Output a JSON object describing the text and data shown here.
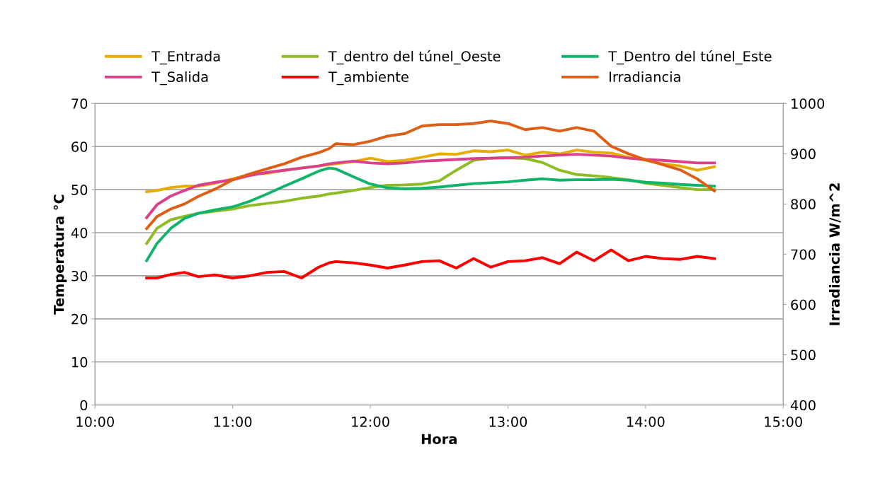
{
  "chart_data": {
    "type": "line",
    "xlabel": "Hora",
    "ylabel": "Temperatura °C",
    "y2label": "Irradiancia W/m^2",
    "x": [
      10.375,
      10.45,
      10.55,
      10.65,
      10.75,
      10.875,
      11.0,
      11.125,
      11.25,
      11.375,
      11.5,
      11.625,
      11.7,
      11.75,
      11.875,
      12.0,
      12.125,
      12.25,
      12.375,
      12.5,
      12.625,
      12.75,
      12.875,
      13.0,
      13.125,
      13.25,
      13.375,
      13.5,
      13.625,
      13.75,
      13.875,
      14.0,
      14.125,
      14.25,
      14.375,
      14.5
    ],
    "xlim": [
      10,
      15
    ],
    "xticks": [
      {
        "value": 10,
        "label": "10:00"
      },
      {
        "value": 11,
        "label": "11:00"
      },
      {
        "value": 12,
        "label": "12:00"
      },
      {
        "value": 13,
        "label": "13:00"
      },
      {
        "value": 14,
        "label": "14:00"
      },
      {
        "value": 15,
        "label": "15:00"
      }
    ],
    "ylim": [
      0,
      70
    ],
    "yticks": [
      0,
      10,
      20,
      30,
      40,
      50,
      60,
      70
    ],
    "y2lim": [
      400,
      1000
    ],
    "y2ticks": [
      400,
      500,
      600,
      700,
      800,
      900,
      1000
    ],
    "grid": "y",
    "legend": "top",
    "marker": "none",
    "line_style": "solid",
    "series": [
      {
        "name": "T_Entrada",
        "color": "#e6ac00",
        "values": [
          49.5,
          49.8,
          50.5,
          50.8,
          50.8,
          51.5,
          52.5,
          53.5,
          53.8,
          54.5,
          55,
          55.5,
          55.8,
          56,
          56.5,
          57.3,
          56.5,
          56.8,
          57.5,
          58.3,
          58.2,
          59,
          58.8,
          59.2,
          58,
          58.7,
          58.3,
          59.2,
          58.7,
          58.5,
          57.5,
          56.8,
          56,
          55.5,
          54.5,
          55.3
        ]
      },
      {
        "name": "T_dentro del túnel_Oeste",
        "color": "#8fbc24",
        "values": [
          37.5,
          41,
          43,
          43.8,
          44.5,
          45,
          45.5,
          46.3,
          46.8,
          47.3,
          48,
          48.5,
          49,
          49.2,
          49.8,
          50.5,
          51,
          51.1,
          51.3,
          52,
          54.5,
          56.8,
          57.3,
          57.4,
          57.2,
          56.3,
          54.5,
          53.5,
          53.2,
          52.8,
          52.3,
          51.5,
          51,
          50.5,
          50,
          50
        ]
      },
      {
        "name": "T_Dentro del túnel_Este",
        "color": "#10b46a",
        "values": [
          33.5,
          37.5,
          41,
          43.3,
          44.5,
          45.3,
          46,
          47.3,
          49,
          50.8,
          52.5,
          54.3,
          55,
          54.8,
          53,
          51.3,
          50.4,
          50.2,
          50.3,
          50.6,
          51,
          51.4,
          51.6,
          51.8,
          52.2,
          52.5,
          52.2,
          52.3,
          52.3,
          52.4,
          52.2,
          51.7,
          51.5,
          51.2,
          51,
          50.8
        ]
      },
      {
        "name": "T_Salida",
        "color": "#d9418c",
        "values": [
          43.5,
          46.5,
          48.5,
          49.8,
          51,
          51.7,
          52.3,
          53.3,
          54,
          54.5,
          55,
          55.5,
          56,
          56.2,
          56.6,
          56.2,
          56,
          56.2,
          56.6,
          56.8,
          57,
          57.2,
          57.3,
          57.4,
          57.5,
          57.8,
          58,
          58.2,
          58,
          57.8,
          57.3,
          57,
          56.8,
          56.5,
          56.2,
          56.2
        ]
      },
      {
        "name": "T_ambiente",
        "color": "#ff0000",
        "values": [
          29.5,
          29.5,
          30.3,
          30.8,
          29.8,
          30.2,
          29.5,
          30,
          30.8,
          31,
          29.5,
          32,
          33,
          33.3,
          33,
          32.5,
          31.8,
          32.5,
          33.3,
          33.5,
          31.8,
          34,
          32,
          33.3,
          33.5,
          34.2,
          32.8,
          35.5,
          33.5,
          36,
          33.5,
          34.5,
          34,
          33.8,
          34.5,
          34
        ]
      },
      {
        "name": "Irradiancia",
        "color": "#dd5e14",
        "axis": "y2",
        "values": [
          751,
          775,
          790,
          800,
          815,
          830,
          848,
          860,
          870,
          880,
          893,
          902,
          910,
          920,
          918,
          925,
          935,
          940,
          955,
          958,
          958,
          960,
          965,
          960,
          948,
          952,
          945,
          952,
          945,
          915,
          900,
          888,
          878,
          868,
          850,
          826
        ]
      }
    ]
  }
}
